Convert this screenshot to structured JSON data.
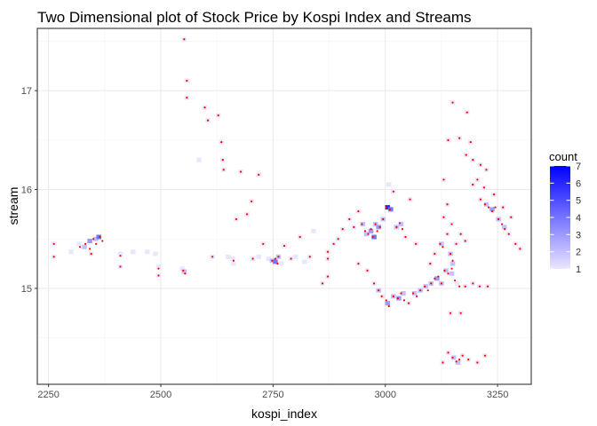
{
  "chart_data": {
    "type": "heatmap",
    "subtype": "2d-bin-with-points",
    "title": "Two Dimensional plot of Stock Price by Kospi Index and Streams",
    "xlabel": "kospi_index",
    "ylabel": "stream",
    "xlim": [
      2225,
      3325
    ],
    "ylim": [
      14.03,
      17.63
    ],
    "x_ticks": [
      2250,
      2500,
      2750,
      3000,
      3250
    ],
    "y_ticks": [
      15,
      16,
      17
    ],
    "grid": true,
    "bin_width": [
      11,
      0.045
    ],
    "legend": {
      "title": "count",
      "placement": "right",
      "min": 1,
      "max": 7,
      "ticks": [
        1,
        2,
        3,
        4,
        5,
        6,
        7
      ]
    },
    "colors": {
      "low": "#ebe6ff",
      "high": "#0000ff",
      "points": "#ff0000",
      "panel_border": "#333333",
      "grid_major": "#ebebeb",
      "grid_minor": "#f5f5f5"
    },
    "bins": [
      [
        2262,
        15.45,
        1
      ],
      [
        2262,
        15.32,
        1
      ],
      [
        2300,
        15.37,
        1
      ],
      [
        2318,
        15.45,
        1
      ],
      [
        2330,
        15.42,
        2
      ],
      [
        2342,
        15.48,
        3
      ],
      [
        2355,
        15.5,
        2
      ],
      [
        2362,
        15.52,
        4
      ],
      [
        2345,
        15.35,
        1
      ],
      [
        2410,
        15.35,
        1
      ],
      [
        2410,
        15.22,
        1
      ],
      [
        2438,
        15.37,
        1
      ],
      [
        2470,
        15.37,
        1
      ],
      [
        2488,
        15.35,
        1
      ],
      [
        2495,
        15.22,
        1
      ],
      [
        2495,
        15.13,
        1
      ],
      [
        2548,
        15.2,
        1
      ],
      [
        2552,
        15.17,
        2
      ],
      [
        2552,
        17.52,
        1
      ],
      [
        2558,
        17.1,
        1
      ],
      [
        2558,
        16.93,
        1
      ],
      [
        2585,
        16.3,
        1
      ],
      [
        2598,
        16.83,
        1
      ],
      [
        2605,
        16.7,
        1
      ],
      [
        2615,
        15.32,
        1
      ],
      [
        2628,
        16.75,
        1
      ],
      [
        2635,
        16.48,
        1
      ],
      [
        2638,
        16.3,
        1
      ],
      [
        2640,
        16.2,
        1
      ],
      [
        2650,
        15.32,
        1
      ],
      [
        2660,
        15.3,
        1
      ],
      [
        2662,
        15.25,
        1
      ],
      [
        2668,
        15.7,
        1
      ],
      [
        2678,
        16.18,
        1
      ],
      [
        2692,
        15.75,
        1
      ],
      [
        2702,
        15.88,
        1
      ],
      [
        2705,
        15.3,
        1
      ],
      [
        2718,
        15.32,
        1
      ],
      [
        2718,
        16.15,
        1
      ],
      [
        2728,
        15.45,
        1
      ],
      [
        2740,
        15.3,
        1
      ],
      [
        2748,
        15.28,
        2
      ],
      [
        2755,
        15.27,
        4
      ],
      [
        2762,
        15.32,
        2
      ],
      [
        2768,
        15.25,
        1
      ],
      [
        2775,
        15.43,
        1
      ],
      [
        2790,
        15.3,
        1
      ],
      [
        2800,
        15.32,
        1
      ],
      [
        2810,
        15.52,
        1
      ],
      [
        2820,
        15.27,
        1
      ],
      [
        2832,
        15.32,
        1
      ],
      [
        2840,
        15.58,
        1
      ],
      [
        2860,
        15.05,
        1
      ],
      [
        2872,
        15.3,
        1
      ],
      [
        2872,
        15.12,
        1
      ],
      [
        2872,
        15.37,
        1
      ],
      [
        2885,
        15.45,
        1
      ],
      [
        2895,
        15.5,
        1
      ],
      [
        2905,
        15.6,
        1
      ],
      [
        2920,
        15.7,
        1
      ],
      [
        2930,
        15.62,
        1
      ],
      [
        2940,
        15.78,
        1
      ],
      [
        2950,
        15.65,
        2
      ],
      [
        2958,
        15.55,
        2
      ],
      [
        2968,
        15.58,
        3
      ],
      [
        2975,
        15.52,
        4
      ],
      [
        2978,
        15.65,
        2
      ],
      [
        2985,
        15.62,
        3
      ],
      [
        2995,
        15.7,
        2
      ],
      [
        3005,
        15.82,
        6
      ],
      [
        3012,
        15.8,
        4
      ],
      [
        3008,
        16.05,
        1
      ],
      [
        3018,
        15.98,
        1
      ],
      [
        3025,
        15.62,
        2
      ],
      [
        3035,
        15.65,
        2
      ],
      [
        3045,
        15.52,
        1
      ],
      [
        3055,
        15.9,
        1
      ],
      [
        3068,
        15.45,
        1
      ],
      [
        2940,
        15.25,
        1
      ],
      [
        2960,
        15.18,
        1
      ],
      [
        2975,
        15.05,
        1
      ],
      [
        2985,
        14.98,
        2
      ],
      [
        2995,
        14.92,
        1
      ],
      [
        3005,
        14.85,
        3
      ],
      [
        3018,
        14.92,
        2
      ],
      [
        3030,
        14.9,
        3
      ],
      [
        3040,
        14.95,
        2
      ],
      [
        3052,
        14.85,
        1
      ],
      [
        3065,
        14.95,
        2
      ],
      [
        3078,
        14.98,
        2
      ],
      [
        3090,
        15.02,
        2
      ],
      [
        3102,
        15.05,
        2
      ],
      [
        3115,
        15.1,
        3
      ],
      [
        3125,
        15.05,
        2
      ],
      [
        3135,
        15.18,
        2
      ],
      [
        3148,
        15.15,
        2
      ],
      [
        3160,
        15.05,
        1
      ],
      [
        3178,
        15.02,
        1
      ],
      [
        3195,
        15.05,
        1
      ],
      [
        3210,
        15.02,
        1
      ],
      [
        3228,
        15.02,
        1
      ],
      [
        3100,
        15.25,
        1
      ],
      [
        3110,
        15.35,
        1
      ],
      [
        3125,
        15.45,
        2
      ],
      [
        3138,
        15.55,
        1
      ],
      [
        3145,
        15.35,
        2
      ],
      [
        3150,
        15.25,
        2
      ],
      [
        3158,
        15.45,
        1
      ],
      [
        3168,
        15.55,
        1
      ],
      [
        3178,
        15.48,
        1
      ],
      [
        3148,
        15.65,
        1
      ],
      [
        3130,
        15.72,
        1
      ],
      [
        3138,
        15.85,
        1
      ],
      [
        3130,
        16.1,
        1
      ],
      [
        3140,
        16.5,
        1
      ],
      [
        3150,
        16.88,
        1
      ],
      [
        3165,
        16.52,
        1
      ],
      [
        3180,
        16.35,
        1
      ],
      [
        3190,
        16.48,
        1
      ],
      [
        3195,
        16.3,
        1
      ],
      [
        3212,
        16.25,
        1
      ],
      [
        3225,
        16.2,
        1
      ],
      [
        3195,
        16.05,
        1
      ],
      [
        3212,
        15.9,
        1
      ],
      [
        3225,
        15.85,
        2
      ],
      [
        3238,
        15.8,
        3
      ],
      [
        3252,
        15.7,
        2
      ],
      [
        3265,
        15.62,
        2
      ],
      [
        3275,
        15.55,
        1
      ],
      [
        3290,
        15.45,
        1
      ],
      [
        3300,
        15.4,
        1
      ],
      [
        3182,
        16.78,
        1
      ],
      [
        3205,
        16.1,
        1
      ],
      [
        3220,
        16.02,
        1
      ],
      [
        3242,
        15.95,
        1
      ],
      [
        3262,
        15.82,
        1
      ],
      [
        3280,
        15.72,
        1
      ],
      [
        3140,
        14.35,
        1
      ],
      [
        3152,
        14.3,
        2
      ],
      [
        3162,
        14.25,
        2
      ],
      [
        3172,
        14.32,
        1
      ],
      [
        3185,
        14.28,
        1
      ],
      [
        3205,
        14.25,
        1
      ],
      [
        3222,
        14.32,
        1
      ],
      [
        3128,
        14.25,
        1
      ],
      [
        3145,
        14.75,
        1
      ],
      [
        3168,
        14.75,
        1
      ]
    ],
    "points": [
      [
        2262,
        15.45
      ],
      [
        2262,
        15.32
      ],
      [
        2320,
        15.42
      ],
      [
        2332,
        15.45
      ],
      [
        2342,
        15.4
      ],
      [
        2350,
        15.5
      ],
      [
        2356,
        15.45
      ],
      [
        2364,
        15.52
      ],
      [
        2370,
        15.48
      ],
      [
        2345,
        15.35
      ],
      [
        2410,
        15.33
      ],
      [
        2410,
        15.22
      ],
      [
        2495,
        15.2
      ],
      [
        2495,
        15.13
      ],
      [
        2550,
        15.18
      ],
      [
        2554,
        15.15
      ],
      [
        2552,
        17.52
      ],
      [
        2558,
        17.1
      ],
      [
        2558,
        16.93
      ],
      [
        2598,
        16.83
      ],
      [
        2605,
        16.7
      ],
      [
        2628,
        16.75
      ],
      [
        2635,
        16.48
      ],
      [
        2638,
        16.3
      ],
      [
        2640,
        16.2
      ],
      [
        2615,
        15.32
      ],
      [
        2662,
        15.28
      ],
      [
        2668,
        15.7
      ],
      [
        2678,
        16.18
      ],
      [
        2692,
        15.75
      ],
      [
        2702,
        15.88
      ],
      [
        2705,
        15.3
      ],
      [
        2718,
        16.15
      ],
      [
        2728,
        15.45
      ],
      [
        2748,
        15.28
      ],
      [
        2755,
        15.3
      ],
      [
        2760,
        15.25
      ],
      [
        2762,
        15.32
      ],
      [
        2775,
        15.43
      ],
      [
        2790,
        15.3
      ],
      [
        2810,
        15.52
      ],
      [
        2832,
        15.32
      ],
      [
        2860,
        15.05
      ],
      [
        2872,
        15.3
      ],
      [
        2872,
        15.12
      ],
      [
        2872,
        15.37
      ],
      [
        2885,
        15.45
      ],
      [
        2895,
        15.5
      ],
      [
        2905,
        15.6
      ],
      [
        2920,
        15.7
      ],
      [
        2930,
        15.62
      ],
      [
        2940,
        15.78
      ],
      [
        2948,
        15.65
      ],
      [
        2955,
        15.58
      ],
      [
        2962,
        15.55
      ],
      [
        2968,
        15.6
      ],
      [
        2972,
        15.52
      ],
      [
        2978,
        15.65
      ],
      [
        2982,
        15.58
      ],
      [
        2988,
        15.62
      ],
      [
        2995,
        15.7
      ],
      [
        3002,
        15.82
      ],
      [
        3010,
        15.8
      ],
      [
        3018,
        15.98
      ],
      [
        3025,
        15.62
      ],
      [
        3032,
        15.66
      ],
      [
        3038,
        15.6
      ],
      [
        3045,
        15.52
      ],
      [
        3055,
        15.9
      ],
      [
        3068,
        15.45
      ],
      [
        2940,
        15.25
      ],
      [
        2960,
        15.18
      ],
      [
        2975,
        15.05
      ],
      [
        2985,
        14.98
      ],
      [
        2992,
        14.92
      ],
      [
        3002,
        14.88
      ],
      [
        3008,
        14.82
      ],
      [
        3018,
        14.92
      ],
      [
        3028,
        14.9
      ],
      [
        3035,
        14.95
      ],
      [
        3042,
        14.88
      ],
      [
        3052,
        14.85
      ],
      [
        3062,
        14.95
      ],
      [
        3070,
        14.92
      ],
      [
        3078,
        14.98
      ],
      [
        3088,
        15.02
      ],
      [
        3095,
        14.98
      ],
      [
        3102,
        15.05
      ],
      [
        3110,
        15.1
      ],
      [
        3118,
        15.12
      ],
      [
        3125,
        15.05
      ],
      [
        3132,
        15.18
      ],
      [
        3140,
        15.15
      ],
      [
        3148,
        15.2
      ],
      [
        3155,
        15.08
      ],
      [
        3165,
        15.02
      ],
      [
        3178,
        15.02
      ],
      [
        3195,
        15.05
      ],
      [
        3210,
        15.02
      ],
      [
        3228,
        15.02
      ],
      [
        3100,
        15.25
      ],
      [
        3110,
        15.35
      ],
      [
        3122,
        15.45
      ],
      [
        3128,
        15.42
      ],
      [
        3138,
        15.55
      ],
      [
        3145,
        15.35
      ],
      [
        3150,
        15.28
      ],
      [
        3158,
        15.45
      ],
      [
        3168,
        15.55
      ],
      [
        3178,
        15.48
      ],
      [
        3148,
        15.65
      ],
      [
        3130,
        15.72
      ],
      [
        3138,
        15.85
      ],
      [
        3130,
        16.1
      ],
      [
        3140,
        16.5
      ],
      [
        3150,
        16.88
      ],
      [
        3165,
        16.52
      ],
      [
        3180,
        16.35
      ],
      [
        3190,
        16.48
      ],
      [
        3195,
        16.3
      ],
      [
        3212,
        16.25
      ],
      [
        3225,
        16.2
      ],
      [
        3195,
        16.05
      ],
      [
        3212,
        15.9
      ],
      [
        3222,
        15.85
      ],
      [
        3230,
        15.82
      ],
      [
        3238,
        15.78
      ],
      [
        3245,
        15.82
      ],
      [
        3252,
        15.7
      ],
      [
        3260,
        15.65
      ],
      [
        3266,
        15.6
      ],
      [
        3275,
        15.55
      ],
      [
        3290,
        15.45
      ],
      [
        3300,
        15.4
      ],
      [
        3182,
        16.78
      ],
      [
        3205,
        16.1
      ],
      [
        3220,
        16.02
      ],
      [
        3242,
        15.95
      ],
      [
        3262,
        15.82
      ],
      [
        3280,
        15.72
      ],
      [
        3140,
        14.35
      ],
      [
        3150,
        14.3
      ],
      [
        3158,
        14.26
      ],
      [
        3165,
        14.28
      ],
      [
        3172,
        14.32
      ],
      [
        3185,
        14.28
      ],
      [
        3205,
        14.25
      ],
      [
        3222,
        14.32
      ],
      [
        3128,
        14.25
      ],
      [
        3145,
        14.75
      ],
      [
        3168,
        14.75
      ]
    ]
  }
}
